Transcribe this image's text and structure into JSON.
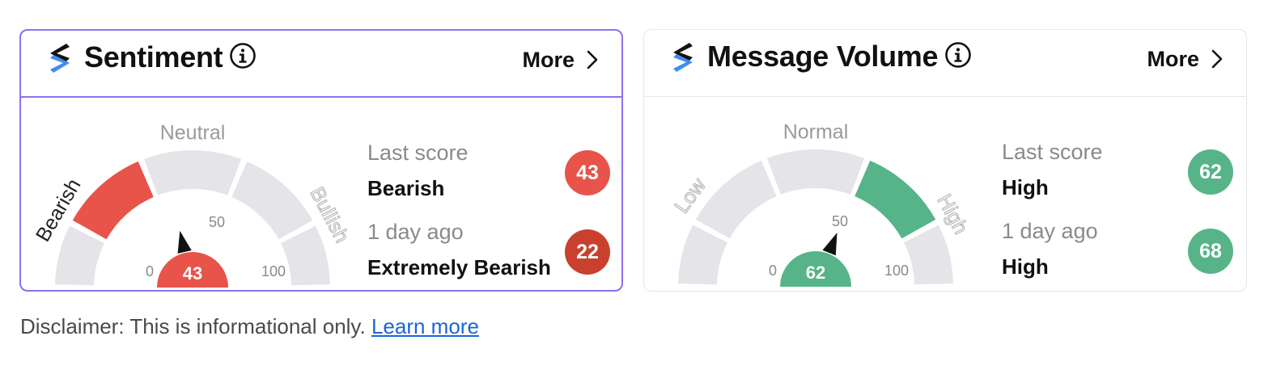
{
  "sentiment": {
    "title": "Sentiment",
    "more_label": "More",
    "gauge": {
      "zones": [
        "Bearish",
        "Neutral",
        "Bullish"
      ],
      "min_label": "0",
      "mid_label": "50",
      "max_label": "100",
      "value": 43,
      "value_label": "43"
    },
    "last_score_caption": "Last score",
    "last_score_label": "Bearish",
    "last_score": "43",
    "prev_caption": "1 day ago",
    "prev_label": "Extremely Bearish",
    "prev_score": "22"
  },
  "volume": {
    "title": "Message Volume",
    "more_label": "More",
    "gauge": {
      "zones": [
        "Low",
        "Normal",
        "High"
      ],
      "min_label": "0",
      "mid_label": "50",
      "max_label": "100",
      "value": 62,
      "value_label": "62"
    },
    "last_score_caption": "Last score",
    "last_score_label": "High",
    "last_score": "62",
    "prev_caption": "1 day ago",
    "prev_label": "High",
    "prev_score": "68"
  },
  "disclaimer": {
    "text": "Disclaimer: This is informational only. ",
    "link_label": "Learn more"
  },
  "colors": {
    "accent_border": "#8f6ef0",
    "bearish": "#e8534a",
    "extremely_bearish": "#c9412e",
    "high": "#56b488",
    "segment_inactive": "#e5e5e9",
    "logo_dark": "#111111",
    "logo_blue": "#3f8cf5"
  },
  "icons": {
    "logo": "stocktwits-logo-icon",
    "info": "info-circle-icon",
    "more": "chevron-right-icon",
    "needle": "gauge-needle-icon"
  }
}
